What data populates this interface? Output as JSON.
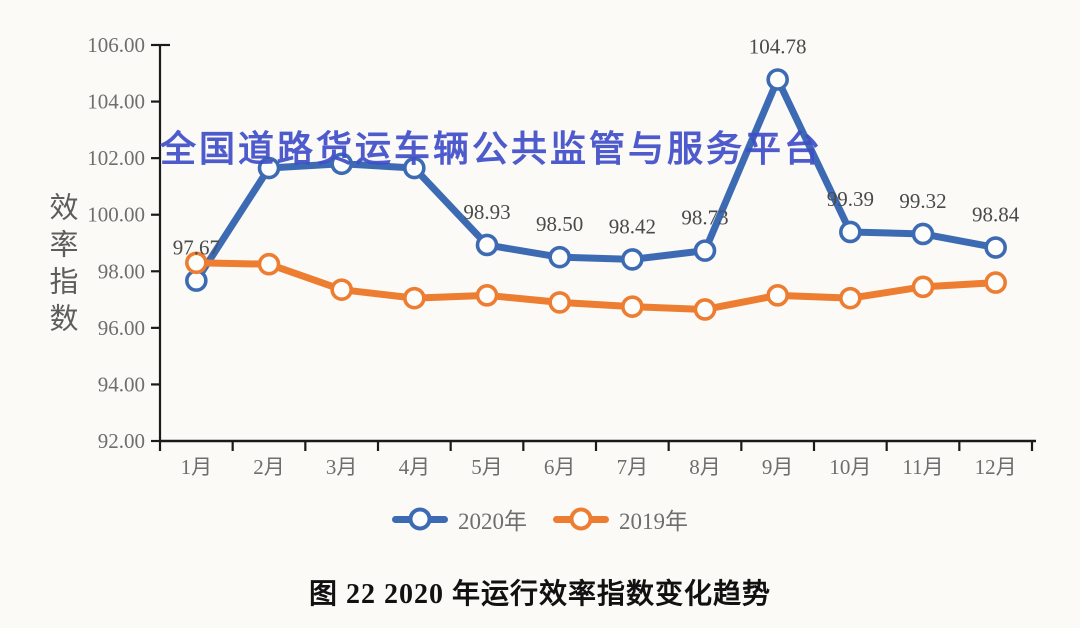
{
  "watermark": "全国道路货运车辆公共监管与服务平台",
  "caption": "图 22 2020 年运行效率指数变化趋势",
  "colors": {
    "background": "#FBFAF7",
    "axis": "#1a1a1a",
    "tick_label": "#6e6e6e",
    "data_label": "#4a4a4a",
    "watermark": "#3F4DC8",
    "series_2020": "#3D6BB3",
    "series_2019": "#ED7D31"
  },
  "chart_data": {
    "type": "line",
    "title": "图 22 2020 年运行效率指数变化趋势",
    "ylabel": "效率指数",
    "xlabel": "",
    "ylim": [
      92,
      106
    ],
    "y_ticks": [
      92,
      94,
      96,
      98,
      100,
      102,
      104,
      106
    ],
    "y_tick_labels": [
      "92.00",
      "94.00",
      "96.00",
      "98.00",
      "100.00",
      "102.00",
      "104.00",
      "106.00"
    ],
    "categories": [
      "1月",
      "2月",
      "3月",
      "4月",
      "5月",
      "6月",
      "7月",
      "8月",
      "9月",
      "10月",
      "11月",
      "12月"
    ],
    "series": [
      {
        "name": "2020年",
        "color": "#3D6BB3",
        "values": [
          97.67,
          101.65,
          101.8,
          101.65,
          98.93,
          98.5,
          98.42,
          98.73,
          104.78,
          99.39,
          99.32,
          98.84
        ],
        "data_labels": [
          "97.67",
          "",
          "",
          "",
          "98.93",
          "98.50",
          "98.42",
          "98.73",
          "104.78",
          "99.39",
          "99.32",
          "98.84"
        ]
      },
      {
        "name": "2019年",
        "color": "#ED7D31",
        "values": [
          98.3,
          98.25,
          97.35,
          97.05,
          97.15,
          96.9,
          96.75,
          96.65,
          97.15,
          97.05,
          97.45,
          97.6
        ],
        "data_labels": [
          "",
          "",
          "",
          "",
          "",
          "",
          "",
          "",
          "",
          "",
          "",
          ""
        ]
      }
    ],
    "legend_position": "bottom",
    "grid": false
  }
}
